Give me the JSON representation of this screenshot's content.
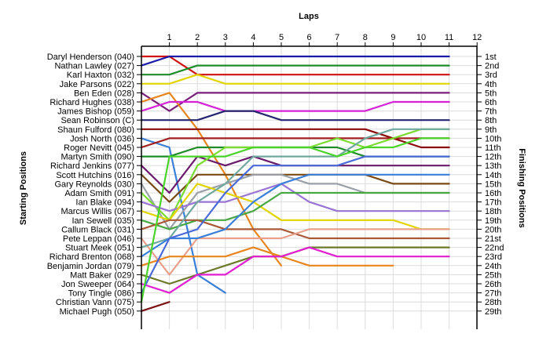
{
  "chart_data": {
    "type": "line",
    "title": "",
    "top_axis_label": "Laps",
    "left_axis_label": "Starting Positions",
    "right_axis_label": "Finishing Positions",
    "laps": [
      1,
      2,
      3,
      4,
      5,
      6,
      7,
      8,
      9,
      10,
      11,
      12
    ],
    "start_labels": [
      "Daryl Henderson (040)",
      "Nathan Lawley (027)",
      "Karl Haxton (032)",
      "Jake Parsons (022)",
      "Ben Eden (028)",
      "Richard Hughes (038)",
      "James Bishop (059)",
      "Sean Robinson (C)",
      "Shaun Fulford (080)",
      "Josh North (036)",
      "Roger Nevitt (045)",
      "Martyn Smith (090)",
      "Richard Jenkins (077)",
      "Scott Hutchins (016)",
      "Gary Reynolds (030)",
      "Adam Smith (091)",
      "Ian Blake (094)",
      "Marcus Willis (067)",
      "Ian Sewell (035)",
      "Callum Black (031)",
      "Pete Leppan (046)",
      "Stuart Meek (051)",
      "Richard Brenton (068)",
      "Benjamin Jordan (079)",
      "Matt Baker (029)",
      "Jon Sweeper (064)",
      "Tony Tingle (086)",
      "Christian Vann (075)",
      "Michael Pugh (050)"
    ],
    "finish_labels": [
      "1st",
      "2nd",
      "3rd",
      "4th",
      "5th",
      "6th",
      "7th",
      "8th",
      "9th",
      "10th",
      "11th",
      "12th",
      "13th",
      "14th",
      "15th",
      "16th",
      "17th",
      "18th",
      "19th",
      "20th",
      "21st",
      "22nd",
      "23rd",
      "24th",
      "25th",
      "26th",
      "27th",
      "28th",
      "29th"
    ],
    "y_range": [
      1,
      29
    ],
    "grid": true,
    "series": [
      {
        "color": "#d01010",
        "values": [
          1,
          1,
          3,
          3,
          3,
          3,
          3,
          3,
          3,
          3,
          3,
          3
        ]
      },
      {
        "color": "#1a1aa8",
        "values": [
          2,
          1,
          1,
          1,
          1,
          1,
          1,
          1,
          1,
          1,
          1,
          1
        ]
      },
      {
        "color": "#1e8c28",
        "values": [
          3,
          3,
          2,
          2,
          2,
          2,
          2,
          2,
          2,
          2,
          2,
          2
        ]
      },
      {
        "color": "#e2d400",
        "values": [
          4,
          4,
          3,
          4,
          4,
          4,
          4,
          4,
          4,
          4,
          4,
          4
        ]
      },
      {
        "color": "#7a1f7a",
        "values": [
          5,
          7,
          5,
          5,
          5,
          5,
          5,
          5,
          5,
          5,
          5,
          5
        ]
      },
      {
        "color": "#e8861e",
        "values": [
          6,
          5,
          9,
          14,
          20,
          24
        ]
      },
      {
        "color": "#d622d6",
        "values": [
          7,
          6,
          6,
          7,
          7,
          7,
          7,
          7,
          7,
          6,
          6,
          6
        ]
      },
      {
        "color": "#262670",
        "values": [
          8,
          8,
          8,
          7,
          7,
          8,
          8,
          8,
          8,
          8,
          8,
          8
        ]
      },
      {
        "color": "#8a0a0a",
        "values": [
          9,
          9,
          9,
          9,
          9,
          9,
          9,
          9,
          9,
          10,
          11,
          11
        ]
      },
      {
        "color": "#3a7fd8",
        "values": [
          10,
          11,
          25,
          27
        ]
      },
      {
        "color": "#a02020",
        "values": [
          11,
          10,
          10,
          10,
          10,
          10,
          10,
          10,
          10,
          10,
          10,
          10
        ]
      },
      {
        "color": "#1e8c28",
        "values": [
          12,
          12,
          11,
          11,
          11,
          11,
          11,
          11,
          12,
          12,
          12,
          12
        ]
      },
      {
        "color": "#6a1a6a",
        "values": [
          13,
          16,
          12,
          13,
          12,
          13,
          13,
          13,
          13,
          13,
          13,
          13
        ]
      },
      {
        "color": "#7a4a14",
        "values": [
          14,
          17,
          14,
          14,
          14,
          14,
          14,
          14,
          14,
          15,
          15,
          15
        ]
      },
      {
        "color": "#9aa0a8",
        "values": [
          15,
          20,
          16,
          15,
          14,
          14,
          15,
          15,
          16,
          16,
          16,
          16
        ]
      },
      {
        "color": "#7adc30",
        "values": [
          16,
          19,
          13,
          11,
          11,
          11,
          11,
          10,
          11,
          10,
          9,
          9
        ]
      },
      {
        "color": "#9a74d4",
        "values": [
          17,
          18,
          17,
          17,
          16,
          15,
          17,
          18,
          18,
          18,
          18,
          18
        ]
      },
      {
        "color": "#e2d400",
        "values": [
          18,
          19,
          15,
          16,
          17,
          19,
          19,
          19,
          19,
          19,
          20,
          20
        ]
      },
      {
        "color": "#4aa844",
        "values": [
          19,
          20,
          19,
          19,
          18,
          16,
          16,
          16,
          16,
          16,
          16,
          16
        ]
      },
      {
        "color": "#a85a38",
        "values": [
          20,
          19,
          19,
          20,
          20,
          20,
          21,
          21,
          21,
          21,
          21,
          21
        ]
      },
      {
        "color": "#e8a08a",
        "values": [
          21,
          25,
          21,
          21,
          21,
          21,
          20,
          20,
          20,
          20,
          20,
          20
        ]
      },
      {
        "color": "#70a8a0",
        "values": [
          22,
          21,
          17,
          15,
          12,
          12,
          12,
          12,
          10,
          9,
          9,
          9
        ]
      },
      {
        "color": "#3a7fd8",
        "values": [
          23,
          21,
          21,
          20,
          17,
          15,
          14,
          14,
          14,
          14,
          14,
          14
        ]
      },
      {
        "color": "#e8861e",
        "values": [
          24,
          23,
          23,
          23,
          22,
          23,
          24,
          24,
          24,
          24
        ]
      },
      {
        "color": "#6a7a2a",
        "values": [
          25,
          26,
          25,
          24,
          23,
          23,
          22,
          22,
          22,
          22,
          22,
          22
        ]
      },
      {
        "color": "#e21ed2",
        "values": [
          26,
          27,
          25,
          25,
          23,
          23,
          22,
          23,
          23,
          23,
          23,
          23
        ]
      },
      {
        "color": "#4a6ad8",
        "values": [
          27,
          21,
          20,
          16,
          13,
          13,
          13,
          13,
          12,
          12,
          12,
          12
        ]
      },
      {
        "color": "#4ad42a",
        "values": [
          28,
          12,
          12,
          12,
          11,
          11,
          11,
          12,
          11,
          11,
          10,
          10
        ]
      },
      {
        "color": "#7a1414",
        "values": [
          29,
          28
        ]
      }
    ]
  }
}
